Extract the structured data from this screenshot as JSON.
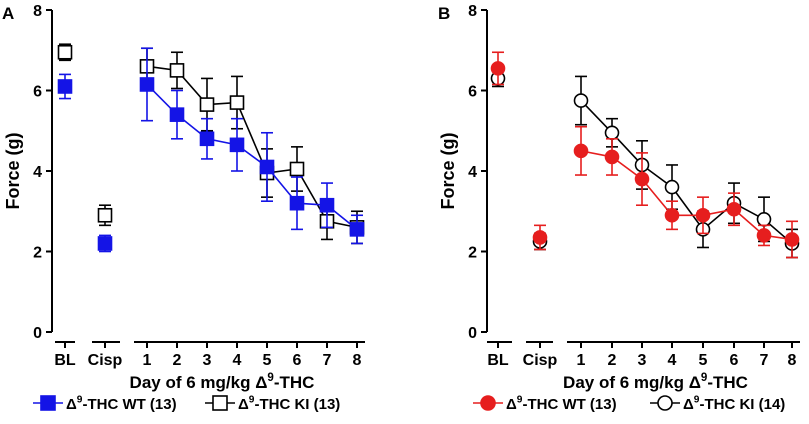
{
  "colors": {
    "wt_blue": "#1414e6",
    "wt_red": "#e61e1e",
    "ki": "#000000",
    "axis": "#000000"
  },
  "chart_data": [
    {
      "panel_label": "A",
      "type": "line",
      "ylabel": "Force (g)",
      "xlabel_prefix": "Day of 6 mg/kg ",
      "xlabel_delta": "Δ",
      "xlabel_sup": "9",
      "xlabel_suffix": "-THC",
      "ylim": [
        0,
        8
      ],
      "yticks": [
        "0",
        "2",
        "4",
        "6",
        "8"
      ],
      "categories": [
        "BL",
        "Cisp",
        "1",
        "2",
        "3",
        "4",
        "5",
        "6",
        "7",
        "8"
      ],
      "marker": "square",
      "series": [
        {
          "name": "Δ9-THC WT (13)",
          "legend_delta": "Δ",
          "legend_sup": "9",
          "legend_rest": "-THC WT (13)",
          "color": "#1414e6",
          "filled": true,
          "values": [
            6.1,
            2.2,
            6.15,
            5.4,
            4.8,
            4.65,
            4.1,
            3.2,
            3.15,
            2.55
          ],
          "errors": [
            0.3,
            0.2,
            0.9,
            0.6,
            0.5,
            0.65,
            0.85,
            0.65,
            0.55,
            0.35
          ]
        },
        {
          "name": "Δ9-THC KI (13)",
          "legend_delta": "Δ",
          "legend_sup": "9",
          "legend_rest": "-THC KI (13)",
          "color": "#000000",
          "filled": false,
          "values": [
            6.95,
            2.9,
            6.6,
            6.5,
            5.65,
            5.7,
            3.95,
            4.05,
            2.75,
            2.6
          ],
          "errors": [
            0.2,
            0.25,
            0.45,
            0.45,
            0.65,
            0.65,
            0.6,
            0.55,
            0.45,
            0.4
          ]
        }
      ]
    },
    {
      "panel_label": "B",
      "type": "line",
      "ylabel": "Force (g)",
      "xlabel_prefix": "Day of 6 mg/kg ",
      "xlabel_delta": "Δ",
      "xlabel_sup": "9",
      "xlabel_suffix": "-THC",
      "ylim": [
        0,
        8
      ],
      "yticks": [
        "0",
        "2",
        "4",
        "6",
        "8"
      ],
      "categories": [
        "BL",
        "Cisp",
        "1",
        "2",
        "3",
        "4",
        "5",
        "6",
        "7",
        "8"
      ],
      "marker": "circle",
      "series": [
        {
          "name": "Δ9-THC WT (13)",
          "legend_delta": "Δ",
          "legend_sup": "9",
          "legend_rest": "-THC WT (13)",
          "color": "#e61e1e",
          "filled": true,
          "values": [
            6.55,
            2.35,
            4.5,
            4.35,
            3.8,
            2.9,
            2.9,
            3.05,
            2.4,
            2.3
          ],
          "errors": [
            0.4,
            0.3,
            0.6,
            0.45,
            0.65,
            0.35,
            0.45,
            0.4,
            0.25,
            0.45
          ]
        },
        {
          "name": "Δ9-THC KI (14)",
          "legend_delta": "Δ",
          "legend_sup": "9",
          "legend_rest": "-THC KI (14)",
          "color": "#000000",
          "filled": false,
          "values": [
            6.3,
            2.25,
            5.75,
            4.95,
            4.15,
            3.6,
            2.55,
            3.2,
            2.8,
            2.2
          ],
          "errors": [
            0.2,
            0.2,
            0.6,
            0.35,
            0.6,
            0.55,
            0.45,
            0.5,
            0.55,
            0.35
          ]
        }
      ]
    }
  ]
}
